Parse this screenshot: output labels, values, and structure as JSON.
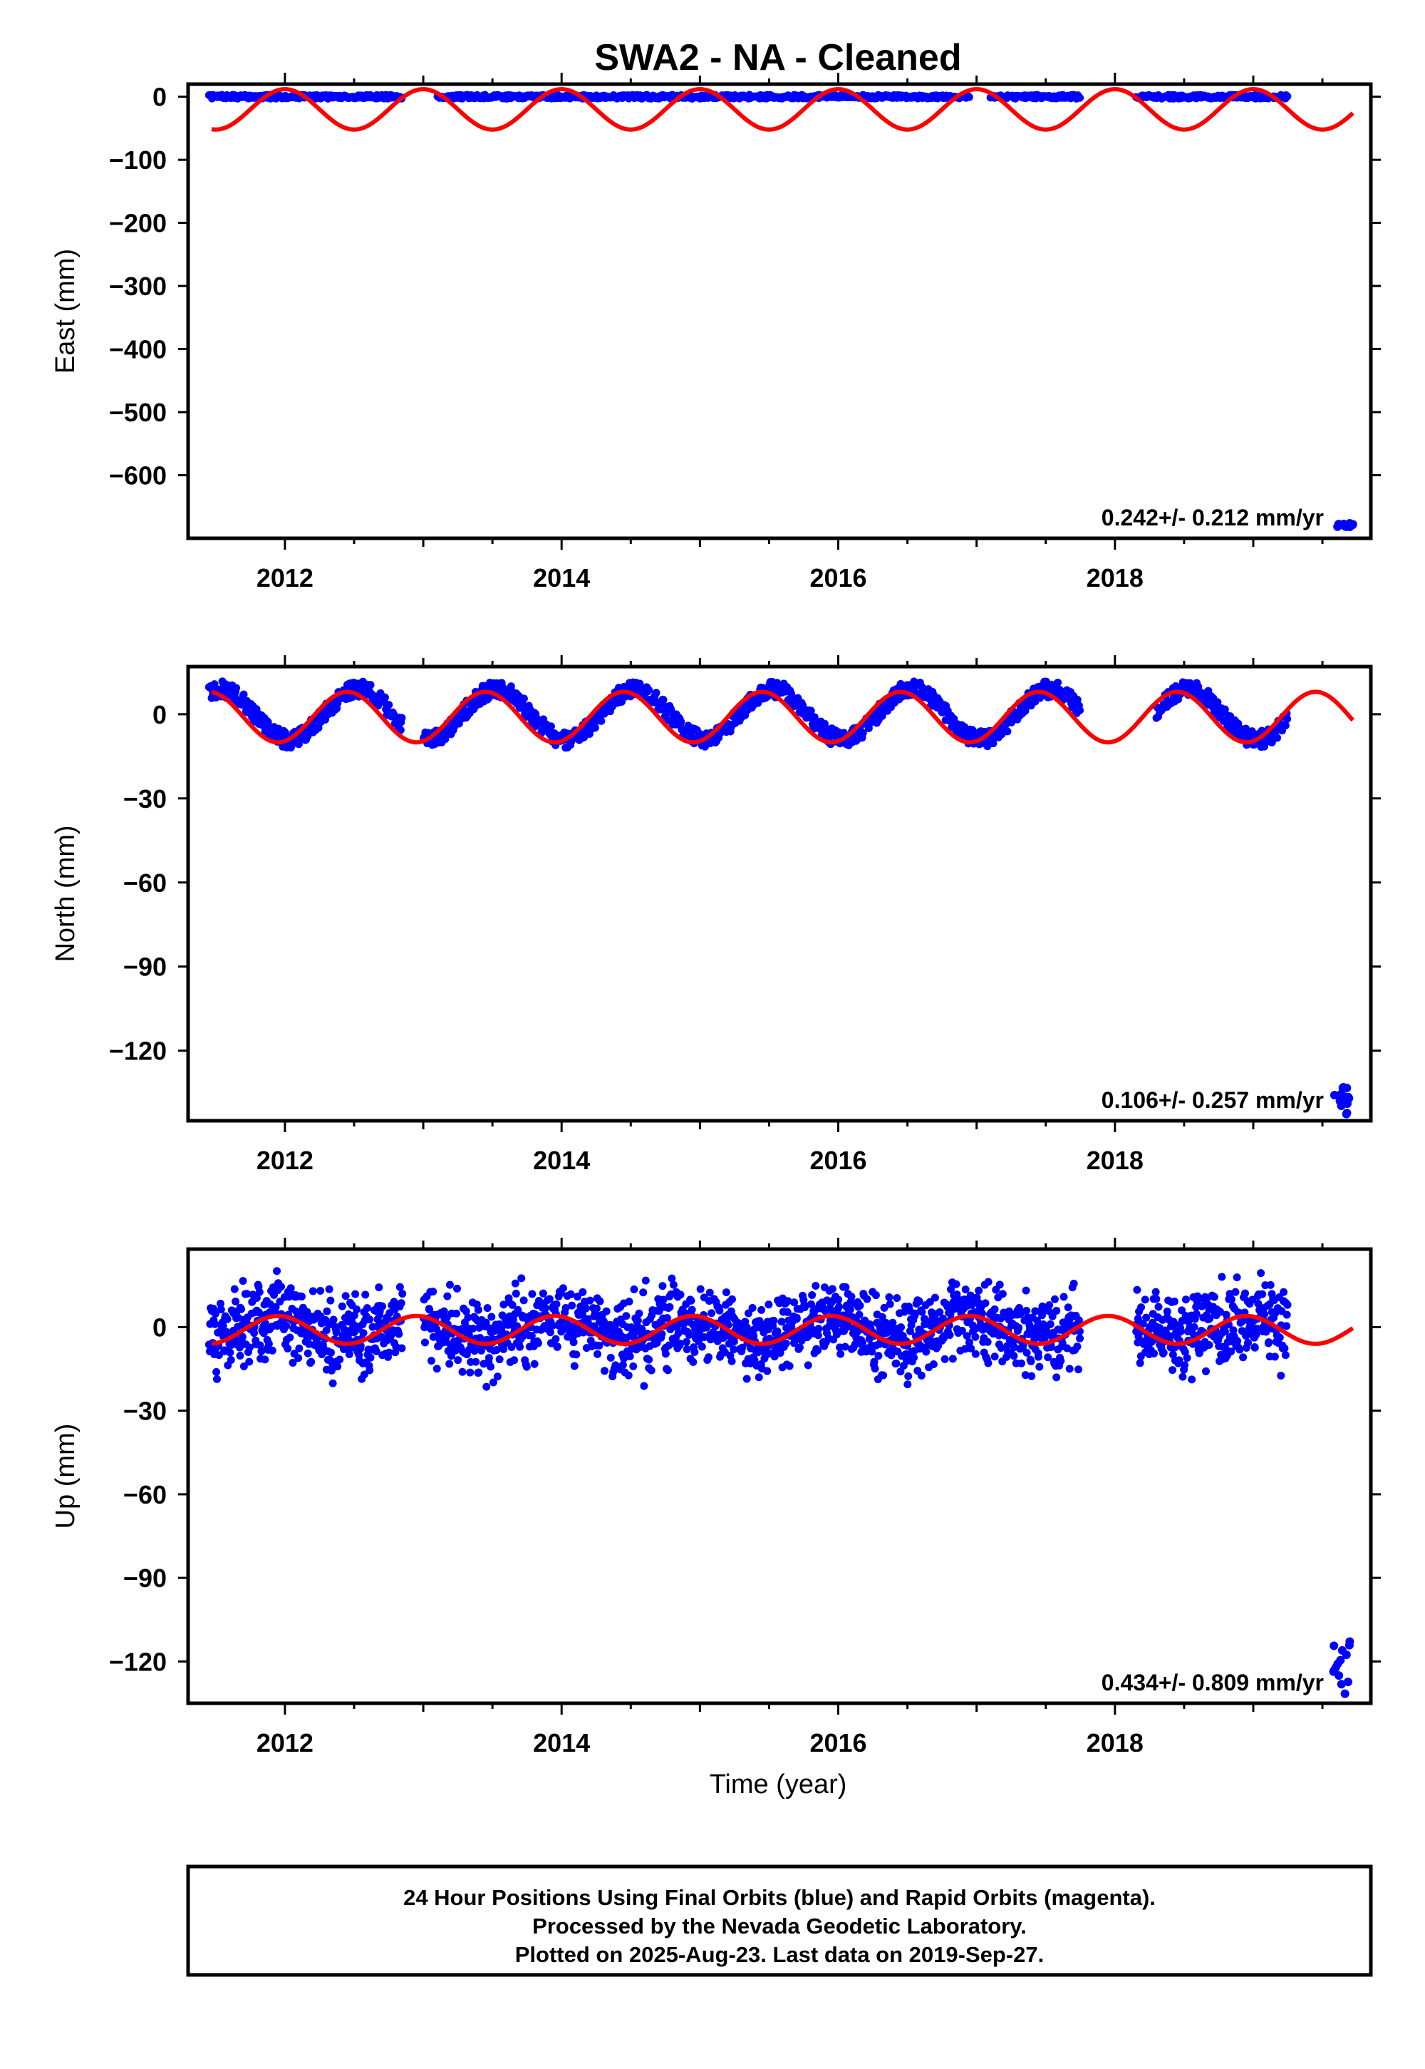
{
  "figure_title": "SWA2  - NA - Cleaned",
  "xlabel": "Time (year)",
  "footer": {
    "line1": "24 Hour Positions Using Final Orbits (blue) and Rapid Orbits (magenta).",
    "line2": "Processed by the Nevada Geodetic Laboratory.",
    "line3": "Plotted on 2025-Aug-23. Last data on 2019-Sep-27."
  },
  "colors": {
    "observed": "#0000ff",
    "model": "#ff0000",
    "frame": "#000000"
  },
  "chart_data": [
    {
      "type": "scatter",
      "ylabel": "East (mm)",
      "rate_label": "0.242+/- 0.212 mm/yr",
      "xlim": [
        2011.3,
        2019.85
      ],
      "ylim": [
        -700,
        20
      ],
      "yticks": [
        0,
        -100,
        -200,
        -300,
        -400,
        -500,
        -600
      ],
      "yticks_text": [
        "0",
        "−100",
        "−200",
        "−300",
        "−400",
        "−500",
        "−600"
      ],
      "xticks": [
        2012,
        2014,
        2016,
        2018
      ],
      "xticks_text": [
        "2012",
        "2014",
        "2016",
        "2018"
      ],
      "series": [
        {
          "kind": "points",
          "segments": [
            [
              2011.45,
              2012.85,
              0
            ],
            [
              2013.1,
              2016.95,
              0
            ],
            [
              2017.1,
              2017.75,
              0
            ],
            [
              2018.15,
              2019.25,
              0
            ]
          ],
          "outlier_cluster": {
            "x": [
              2019.6,
              2019.72
            ],
            "y": [
              -682,
              -676
            ]
          }
        },
        {
          "kind": "model_curve",
          "x_range": [
            2011.47,
            2019.72
          ],
          "offset": -20,
          "amplitude": 32,
          "phase_peak": 2013.0
        }
      ]
    },
    {
      "type": "scatter",
      "ylabel": "North (mm)",
      "rate_label": "0.106+/- 0.257 mm/yr",
      "xlim": [
        2011.3,
        2019.85
      ],
      "ylim": [
        -145,
        17
      ],
      "yticks": [
        0,
        -30,
        -60,
        -90,
        -120
      ],
      "yticks_text": [
        "0",
        "−30",
        "−60",
        "−90",
        "−120"
      ],
      "xticks": [
        2012,
        2014,
        2016,
        2018
      ],
      "xticks_text": [
        "2012",
        "2014",
        "2016",
        "2018"
      ],
      "series": [
        {
          "kind": "points",
          "segments": [
            [
              2011.45,
              2012.85,
              0
            ],
            [
              2013.0,
              2017.75,
              0
            ],
            [
              2018.3,
              2019.25,
              0
            ]
          ],
          "outlier_cluster": {
            "x": [
              2019.58,
              2019.7
            ],
            "y": [
              -143,
              -133
            ]
          }
        },
        {
          "kind": "model_curve",
          "x_range": [
            2011.47,
            2019.72
          ],
          "offset": -1,
          "amplitude": 9,
          "phase_peak": 2012.45
        }
      ]
    },
    {
      "type": "scatter",
      "ylabel": "Up (mm)",
      "rate_label": "0.434+/- 0.809 mm/yr",
      "xlim": [
        2011.3,
        2019.85
      ],
      "ylim": [
        -135,
        28
      ],
      "yticks": [
        0,
        -30,
        -60,
        -90,
        -120
      ],
      "yticks_text": [
        "0",
        "−30",
        "−60",
        "−90",
        "−120"
      ],
      "xticks": [
        2012,
        2014,
        2016,
        2018
      ],
      "xticks_text": [
        "2012",
        "2014",
        "2016",
        "2018"
      ],
      "series": [
        {
          "kind": "points",
          "segments": [
            [
              2011.45,
              2012.85,
              0
            ],
            [
              2013.0,
              2017.75,
              0
            ],
            [
              2018.15,
              2019.25,
              0
            ]
          ],
          "outlier_cluster": {
            "x": [
              2019.58,
              2019.7
            ],
            "y": [
              -132,
              -112
            ]
          }
        },
        {
          "kind": "model_curve",
          "x_range": [
            2011.47,
            2019.72
          ],
          "offset": -1,
          "amplitude": 5,
          "phase_peak": 2011.95
        }
      ]
    }
  ]
}
